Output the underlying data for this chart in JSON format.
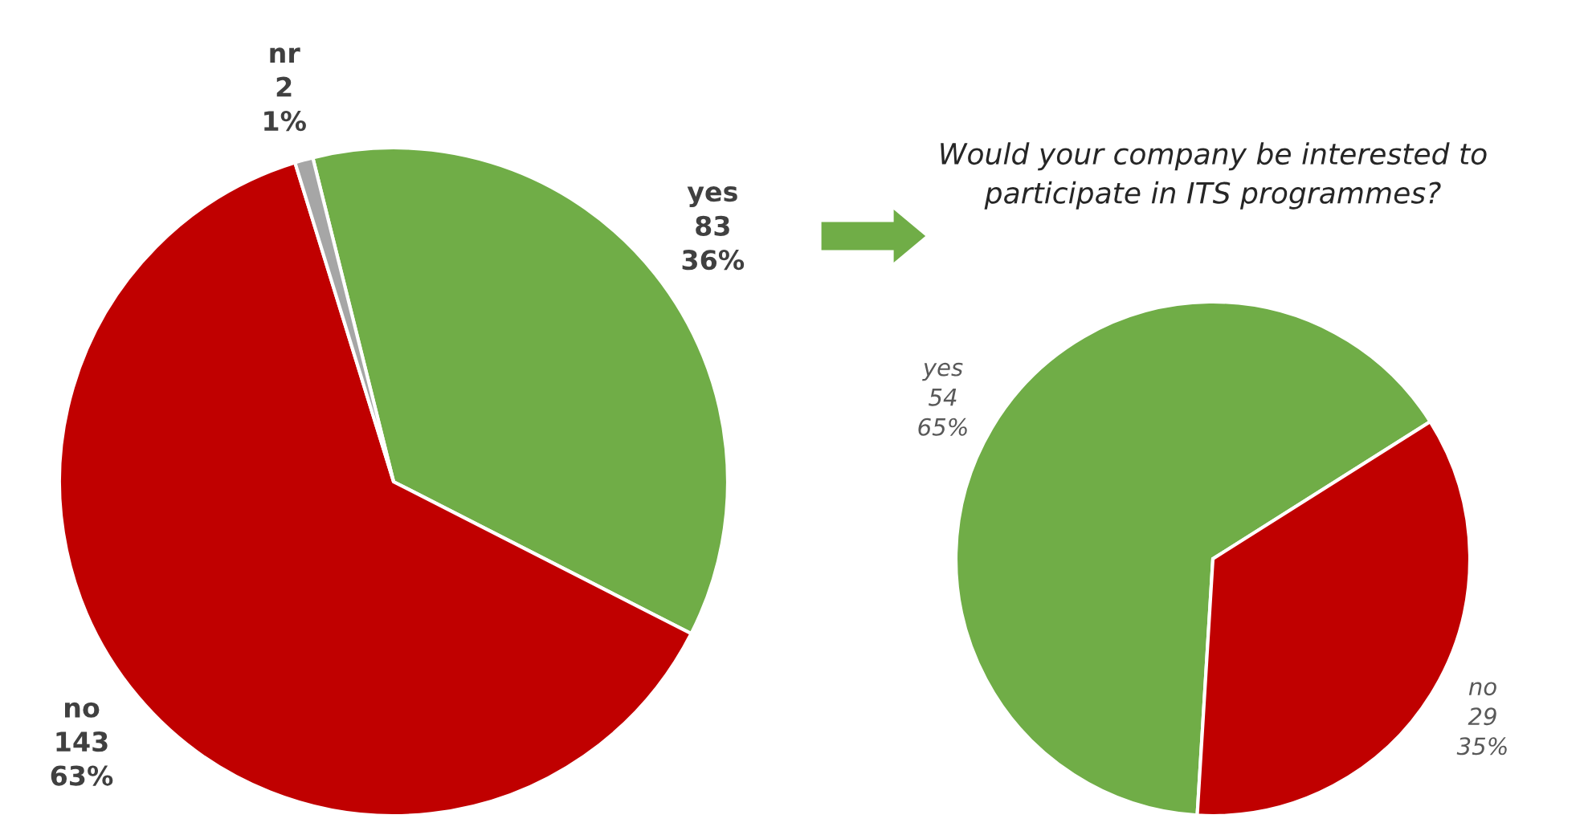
{
  "chart_data": [
    {
      "type": "pie",
      "categories": [
        "yes",
        "no",
        "nr"
      ],
      "values": [
        83,
        143,
        2
      ],
      "colors": [
        "#70ad47",
        "#c00000",
        "#a6a6a6"
      ],
      "value_labels": [
        "83\n36%",
        "143\n63%",
        "2\n1%"
      ]
    },
    {
      "type": "pie",
      "title": "Would your company be interested to\nparticipate in ITS programmes?",
      "categories": [
        "yes",
        "no"
      ],
      "values": [
        54,
        29
      ],
      "colors": [
        "#70ad47",
        "#c00000"
      ],
      "value_labels": [
        "54\n65%",
        "29\n35%"
      ]
    }
  ]
}
